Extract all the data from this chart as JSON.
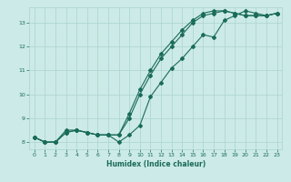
{
  "xlabel": "Humidex (Indice chaleur)",
  "background_color": "#cceae7",
  "grid_color": "#aad4d0",
  "line_color": "#1a6b5a",
  "xlim": [
    -0.5,
    23.5
  ],
  "ylim": [
    7.7,
    13.65
  ],
  "yticks": [
    8,
    9,
    10,
    11,
    12,
    13
  ],
  "xticks": [
    0,
    1,
    2,
    3,
    4,
    5,
    6,
    7,
    8,
    9,
    10,
    11,
    12,
    13,
    14,
    15,
    16,
    17,
    18,
    19,
    20,
    21,
    22,
    23
  ],
  "series1_x": [
    0,
    1,
    2,
    3,
    4,
    5,
    6,
    7,
    8,
    9,
    10,
    11,
    12,
    13,
    14,
    15,
    16,
    17,
    18,
    19,
    20,
    21,
    22,
    23
  ],
  "series1_y": [
    8.2,
    8.0,
    8.0,
    8.4,
    8.5,
    8.4,
    8.3,
    8.3,
    8.0,
    8.3,
    8.7,
    9.9,
    10.5,
    11.1,
    11.5,
    12.0,
    12.5,
    12.4,
    13.1,
    13.3,
    13.5,
    13.4,
    13.3,
    13.4
  ],
  "series2_x": [
    0,
    1,
    2,
    3,
    4,
    5,
    6,
    7,
    8,
    9,
    10,
    11,
    12,
    13,
    14,
    15,
    16,
    17,
    18,
    19,
    20,
    21,
    22,
    23
  ],
  "series2_y": [
    8.2,
    8.0,
    8.0,
    8.4,
    8.5,
    8.4,
    8.3,
    8.3,
    8.3,
    9.0,
    10.0,
    10.8,
    11.5,
    12.0,
    12.5,
    13.0,
    13.3,
    13.4,
    13.5,
    13.4,
    13.3,
    13.3,
    13.3,
    13.4
  ],
  "series3_x": [
    0,
    1,
    2,
    3,
    4,
    5,
    6,
    7,
    8,
    9,
    10,
    11,
    12,
    13,
    14,
    15,
    16,
    17,
    18,
    19,
    20,
    21,
    22,
    23
  ],
  "series3_y": [
    8.2,
    8.0,
    8.0,
    8.5,
    8.5,
    8.4,
    8.3,
    8.3,
    8.3,
    9.2,
    10.2,
    11.0,
    11.7,
    12.2,
    12.7,
    13.1,
    13.4,
    13.5,
    13.5,
    13.4,
    13.3,
    13.3,
    13.3,
    13.4
  ]
}
